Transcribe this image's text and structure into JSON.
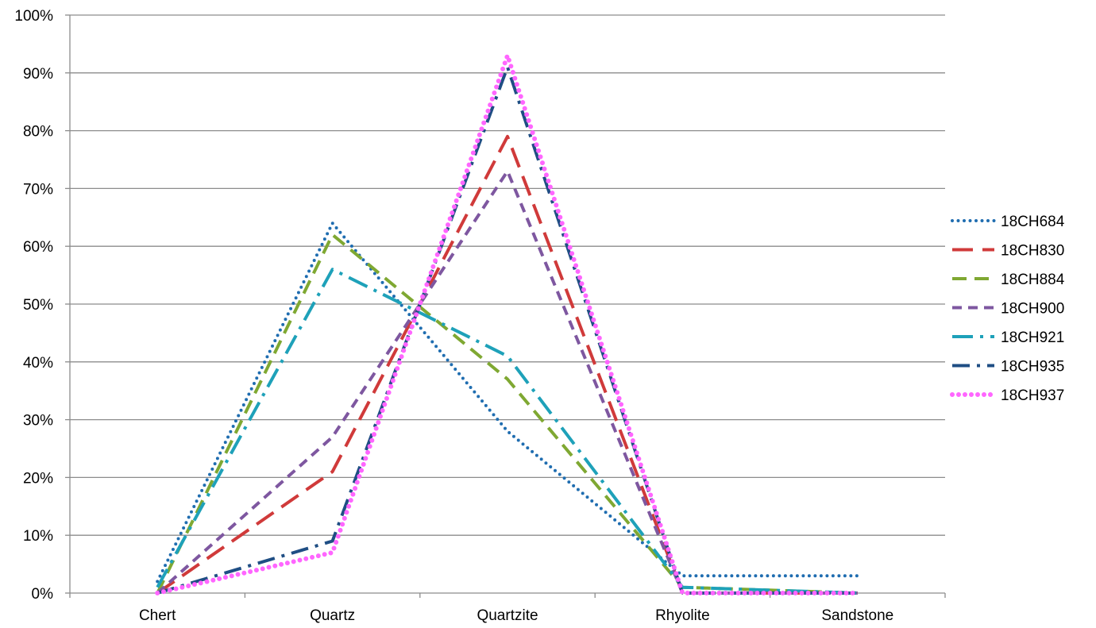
{
  "chart_data": {
    "type": "line",
    "categories": [
      "Chert",
      "Quartz",
      "Quartzite",
      "Rhyolite",
      "Sandstone"
    ],
    "y_tick_labels": [
      "0%",
      "10%",
      "20%",
      "30%",
      "40%",
      "50%",
      "60%",
      "70%",
      "80%",
      "90%",
      "100%"
    ],
    "ylim": [
      0,
      100
    ],
    "y_unit": "%",
    "grid": "horizontal",
    "legend_position": "right",
    "series": [
      {
        "name": "18CH684",
        "values": [
          2,
          64,
          28,
          3,
          3
        ],
        "color": "#1F6DB0",
        "dash": "dotted"
      },
      {
        "name": "18CH830",
        "values": [
          0,
          21,
          79,
          0,
          0
        ],
        "color": "#D03A3A",
        "dash": "long-dash"
      },
      {
        "name": "18CH884",
        "values": [
          0,
          62,
          37,
          1,
          0
        ],
        "color": "#7FA832",
        "dash": "dash"
      },
      {
        "name": "18CH900",
        "values": [
          0,
          27,
          73,
          0,
          0
        ],
        "color": "#7E57A0",
        "dash": "short-dash"
      },
      {
        "name": "18CH921",
        "values": [
          1,
          56,
          41,
          1,
          0
        ],
        "color": "#1EA1B9",
        "dash": "long-dash-dot"
      },
      {
        "name": "18CH935",
        "values": [
          0,
          9,
          91,
          0,
          0
        ],
        "color": "#1F4E84",
        "dash": "dash-dot"
      },
      {
        "name": "18CH937",
        "values": [
          0,
          7,
          93,
          0,
          0
        ],
        "color": "#FF66FF",
        "dash": "round-dot"
      }
    ]
  }
}
